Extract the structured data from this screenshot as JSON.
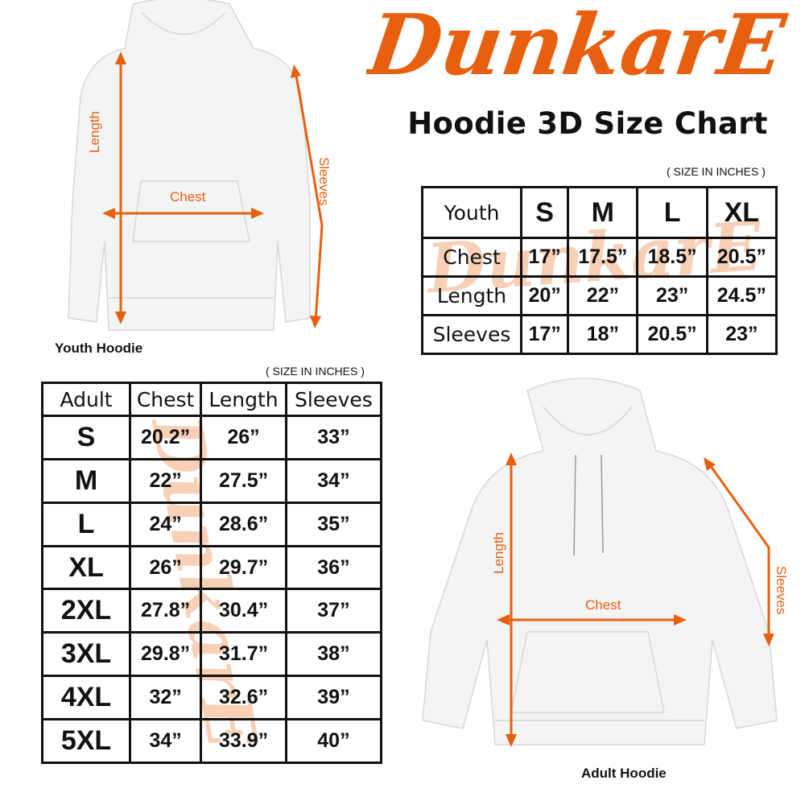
{
  "brand": {
    "logo_text": "DunkarE",
    "color": "#e8600f",
    "watermark_color": "#f6c5a5"
  },
  "title": "Hoodie 3D Size Chart",
  "youth": {
    "image_label": "Youth Hoodie",
    "measure_labels": {
      "length": "Length",
      "chest": "Chest",
      "sleeves": "Sleeves"
    },
    "unit_note": "( SIZE IN INCHES )",
    "table": {
      "corner": "Youth",
      "sizes": [
        "S",
        "M",
        "L",
        "XL"
      ],
      "rows": [
        {
          "label": "Chest",
          "values": [
            "17”",
            "17.5”",
            "18.5”",
            "20.5”"
          ]
        },
        {
          "label": "Length",
          "values": [
            "20”",
            "22”",
            "23”",
            "24.5”"
          ]
        },
        {
          "label": "Sleeves",
          "values": [
            "17”",
            "18”",
            "20.5”",
            "23”"
          ]
        }
      ]
    }
  },
  "adult": {
    "image_label": "Adult Hoodie",
    "measure_labels": {
      "length": "Length",
      "chest": "Chest",
      "sleeves": "Sleeves"
    },
    "unit_note": "( SIZE IN INCHES )",
    "table": {
      "headers": [
        "Adult",
        "Chest",
        "Length",
        "Sleeves"
      ],
      "rows": [
        {
          "size": "S",
          "values": [
            "20.2”",
            "26”",
            "33”"
          ]
        },
        {
          "size": "M",
          "values": [
            "22”",
            "27.5”",
            "34”"
          ]
        },
        {
          "size": "L",
          "values": [
            "24”",
            "28.6”",
            "35”"
          ]
        },
        {
          "size": "XL",
          "values": [
            "26”",
            "29.7”",
            "36”"
          ]
        },
        {
          "size": "2XL",
          "values": [
            "27.8”",
            "30.4”",
            "37”"
          ]
        },
        {
          "size": "3XL",
          "values": [
            "29.8”",
            "31.7”",
            "38”"
          ]
        },
        {
          "size": "4XL",
          "values": [
            "32”",
            "32.6”",
            "39”"
          ]
        },
        {
          "size": "5XL",
          "values": [
            "34”",
            "33.9”",
            "40”"
          ]
        }
      ]
    }
  }
}
